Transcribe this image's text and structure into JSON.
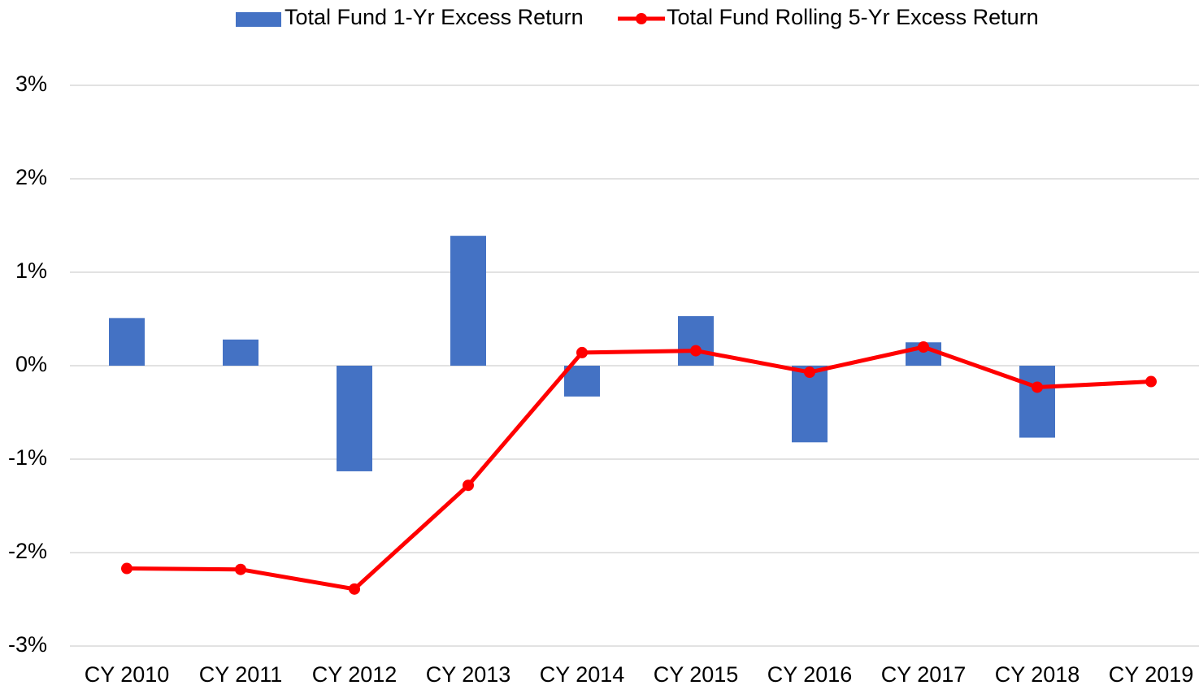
{
  "chart_data": {
    "type": "bar_line",
    "categories": [
      "CY 2010",
      "CY 2011",
      "CY 2012",
      "CY 2013",
      "CY 2014",
      "CY 2015",
      "CY 2016",
      "CY 2017",
      "CY 2018",
      "CY 2019"
    ],
    "series": [
      {
        "name": "Total Fund 1-Yr Excess Return",
        "type": "bar",
        "color": "#4472c4",
        "values": [
          0.51,
          0.28,
          -1.13,
          1.39,
          -0.33,
          0.53,
          -0.82,
          0.25,
          -0.77,
          0
        ]
      },
      {
        "name": "Total Fund Rolling 5-Yr Excess Return",
        "type": "line",
        "color": "#ff0000",
        "values": [
          -2.17,
          -2.18,
          -2.39,
          -1.28,
          0.14,
          0.16,
          -0.07,
          0.2,
          -0.23,
          -0.17
        ]
      }
    ],
    "ylim": [
      -3,
      3
    ],
    "yticks": [
      {
        "value": -3,
        "label": "-3%"
      },
      {
        "value": -2,
        "label": "-2%"
      },
      {
        "value": -1,
        "label": "-1%"
      },
      {
        "value": 0,
        "label": "0%"
      },
      {
        "value": 1,
        "label": "1%"
      },
      {
        "value": 2,
        "label": "2%"
      },
      {
        "value": 3,
        "label": "3%"
      }
    ],
    "grid": true,
    "legend": "top"
  }
}
